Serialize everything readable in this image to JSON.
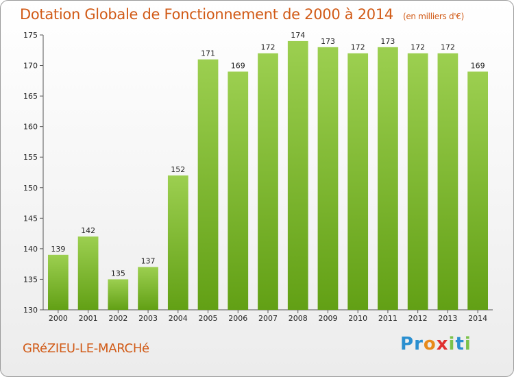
{
  "title": "Dotation Globale de Fonctionnement de 2000 à 2014",
  "unit": "(en milliers d'€)",
  "commune": "GRéZIEU-LE-MARCHé",
  "logo": {
    "letters": [
      "P",
      "r",
      "o",
      "x",
      "i",
      "t",
      "i"
    ],
    "colors": [
      "#2a8fd0",
      "#2a8fd0",
      "#e88a1a",
      "#e03030",
      "#7cc24a",
      "#2a8fd0",
      "#7cc24a"
    ]
  },
  "colors": {
    "bar_light": "#9ccf50",
    "bar_dark": "#62a015",
    "text_accent": "#d15a16"
  },
  "chart_data": {
    "type": "bar",
    "categories": [
      "2000",
      "2001",
      "2002",
      "2003",
      "2004",
      "2005",
      "2006",
      "2007",
      "2008",
      "2009",
      "2010",
      "2011",
      "2012",
      "2013",
      "2014"
    ],
    "values": [
      139,
      142,
      135,
      137,
      152,
      171,
      169,
      172,
      174,
      173,
      172,
      173,
      172,
      172,
      169
    ],
    "ylim": [
      130,
      175
    ],
    "yticks": [
      130,
      135,
      140,
      145,
      150,
      155,
      160,
      165,
      170,
      175
    ],
    "grid": false
  }
}
